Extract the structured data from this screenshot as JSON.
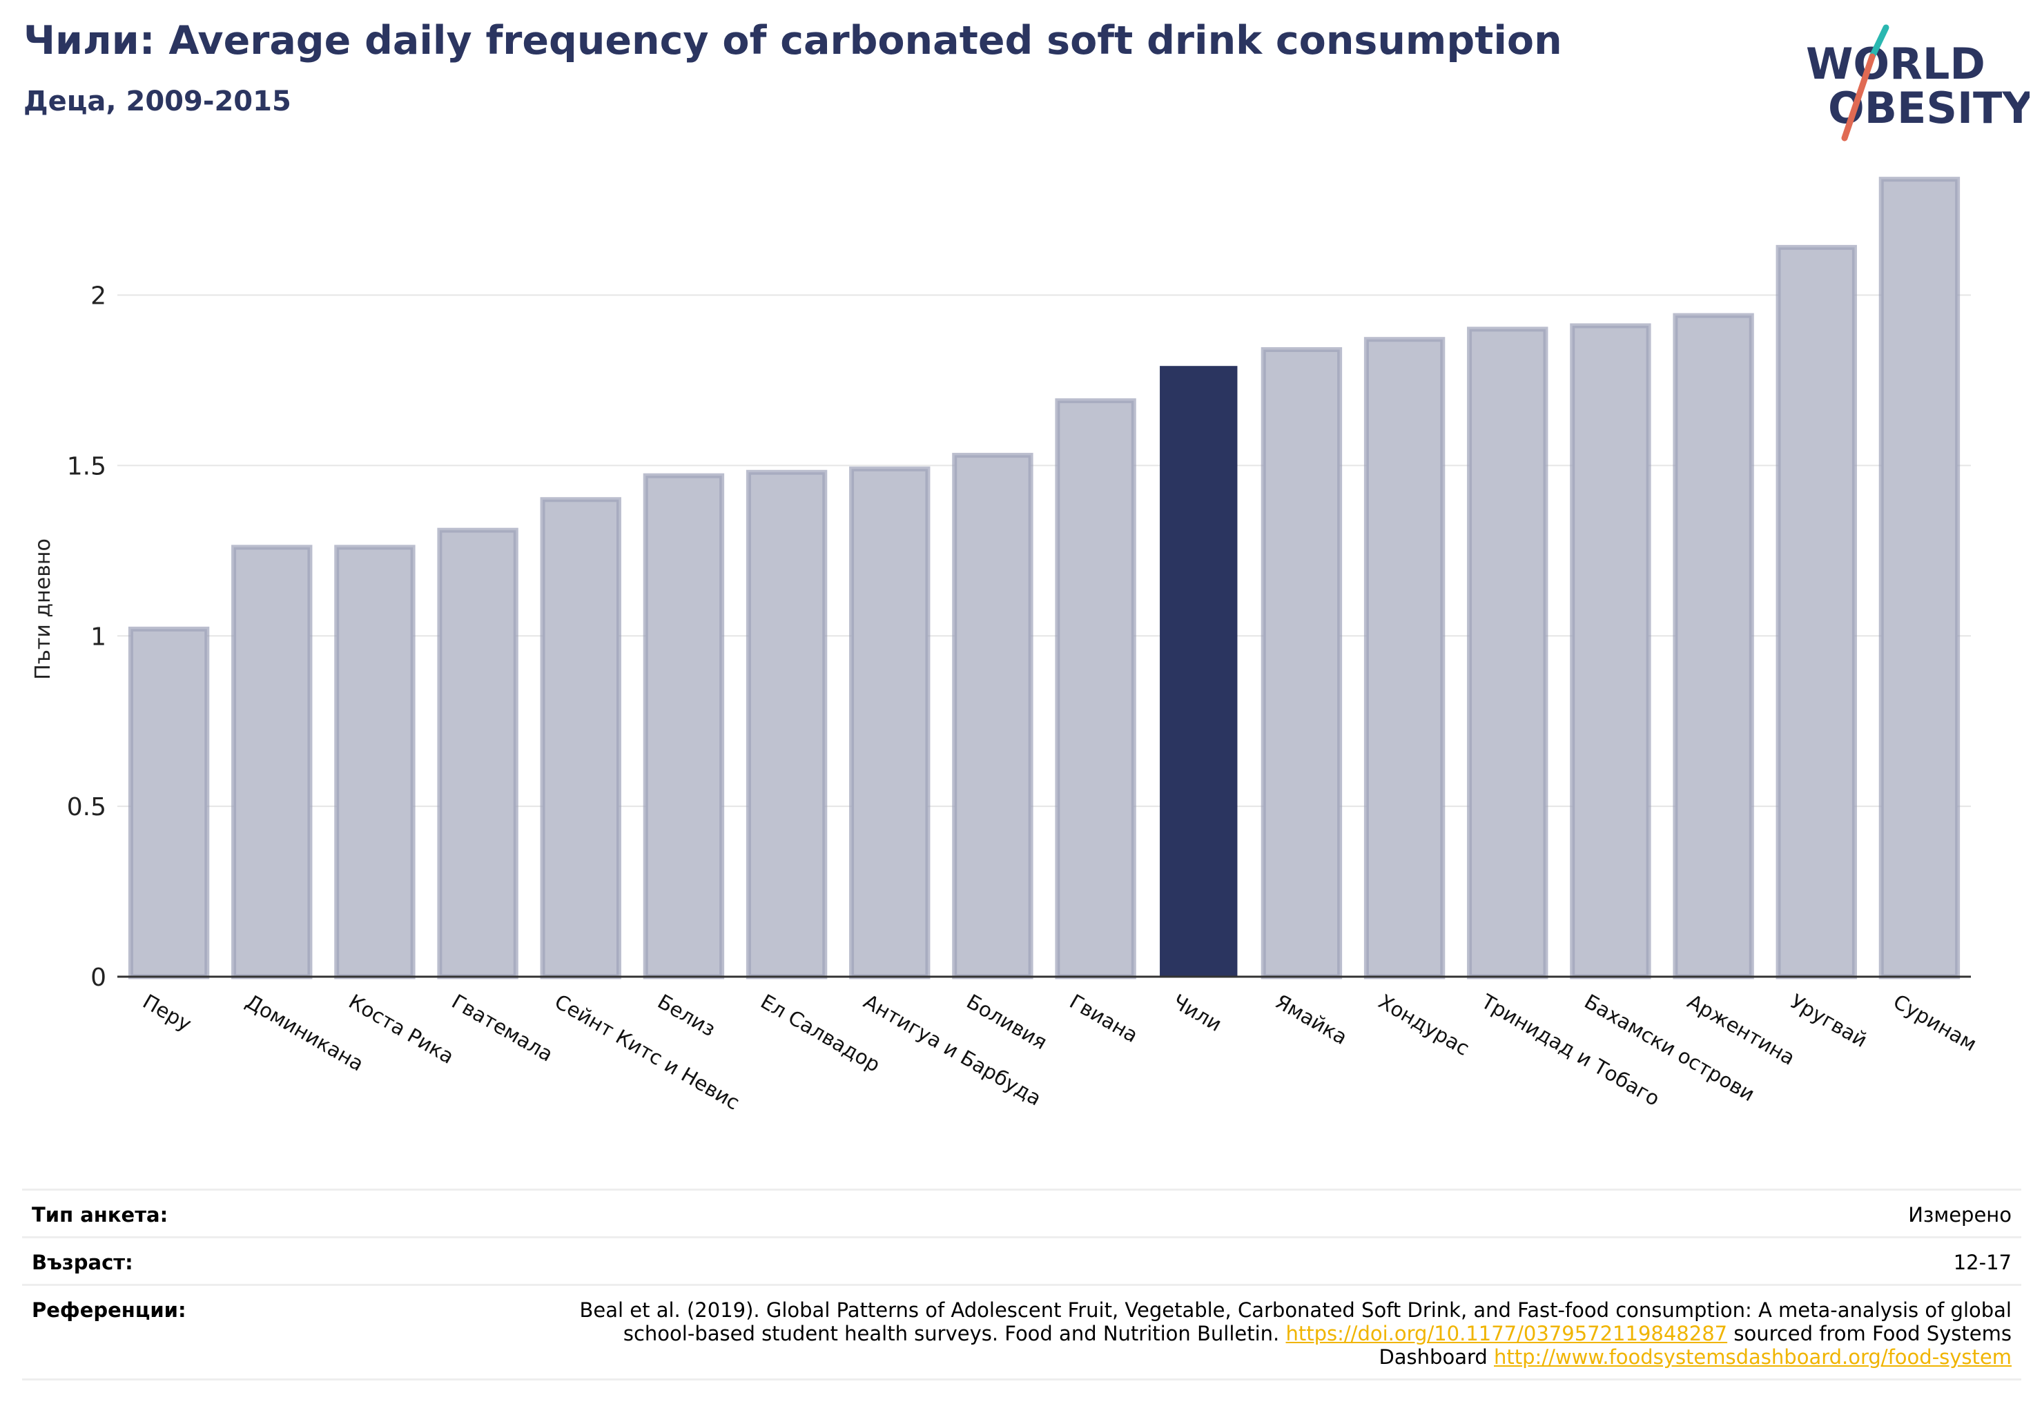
{
  "title": "Чили: Average daily frequency of carbonated soft drink consumption",
  "subtitle": "Деца, 2009-2015",
  "logo": {
    "line1": "WORLD",
    "line2": "OBESITY",
    "accent_color": "#2ab7b0",
    "slash_color": "#e06a53"
  },
  "colors": {
    "highlight": "#2b3560",
    "bar": "#bfc2d0",
    "bar_stroke": "#9ea3b9",
    "axis": "#333333",
    "grid": "#e5e5e5"
  },
  "chart_data": {
    "type": "bar",
    "title": "Чили: Average daily frequency of carbonated soft drink consumption",
    "subtitle": "Деца, 2009-2015",
    "ylabel": "Пъти дневно",
    "xlabel": "",
    "ylim": [
      0,
      2.4
    ],
    "yticks": [
      0,
      0.5,
      1,
      1.5,
      2
    ],
    "ytick_labels": [
      "0",
      "0.5",
      "1",
      "1.5",
      "2"
    ],
    "grid": true,
    "highlight": "Чили",
    "categories": [
      "Перу",
      "Доминикана",
      "Коста Рика",
      "Гватемала",
      "Сейнт Китс и Невис",
      "Белиз",
      "Ел Салвадор",
      "Антигуа и Барбуда",
      "Боливия",
      "Гвиана",
      "Чили",
      "Ямайка",
      "Хондурас",
      "Тринидад и Тобаго",
      "Бахамски острови",
      "Аржентина",
      "Уругвай",
      "Суринам"
    ],
    "values": [
      1.02,
      1.26,
      1.26,
      1.31,
      1.4,
      1.47,
      1.48,
      1.49,
      1.53,
      1.69,
      1.79,
      1.84,
      1.87,
      1.9,
      1.91,
      1.94,
      2.14,
      2.34
    ]
  },
  "footer": {
    "survey_type_label": "Тип анкета:",
    "survey_type_value": "Измерено",
    "age_label": "Възраст:",
    "age_value": "12-17",
    "references_label": "Референции:",
    "references_text": "Beal et al. (2019). Global Patterns of Adolescent Fruit, Vegetable, Carbonated Soft Drink, and Fast-food consumption: A meta-analysis of global school-based student health surveys. Food and Nutrition Bulletin. ",
    "references_link1": "https://doi.org/10.1177/0379572119848287",
    "references_mid": " sourced from Food Systems Dashboard ",
    "references_link2": "http://www.foodsystemsdashboard.org/food-system"
  }
}
